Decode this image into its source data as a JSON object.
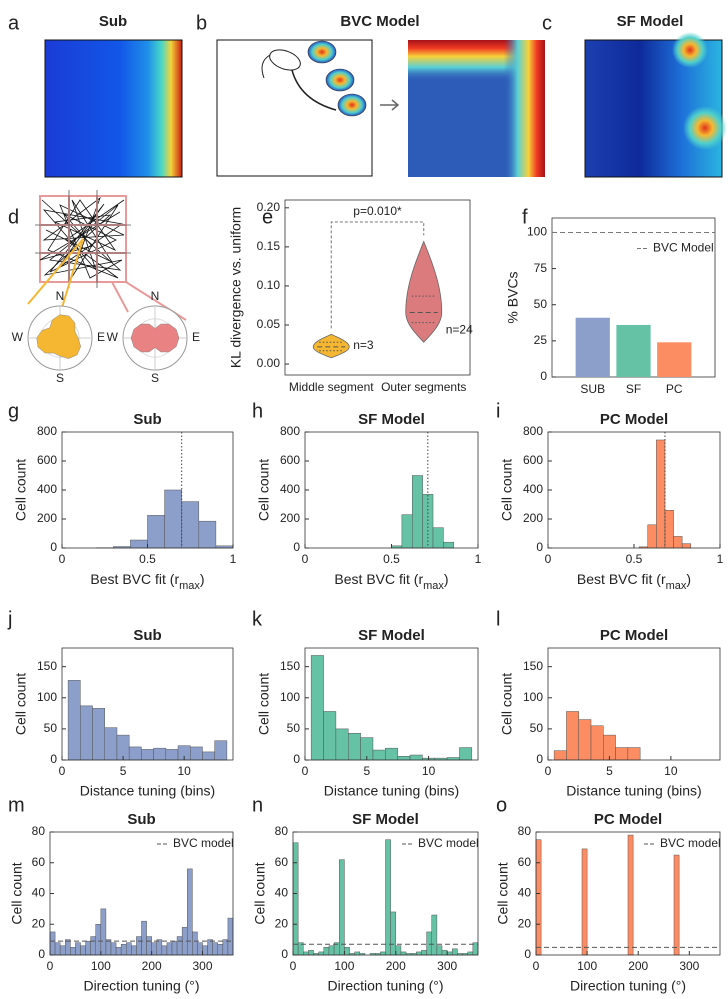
{
  "chart_data": [
    {
      "type": "image",
      "panel": "a",
      "title": "Sub"
    },
    {
      "type": "image",
      "panel": "b",
      "title": "BVC Model"
    },
    {
      "type": "image",
      "panel": "c",
      "title": "SF Model"
    },
    {
      "type": "rose",
      "panel": "d",
      "directions": [
        "N",
        "E",
        "S",
        "W"
      ],
      "colors": [
        "#f5b731",
        "#e98383"
      ]
    },
    {
      "type": "violin",
      "panel": "e",
      "ylabel": "KL divergence vs. uniform",
      "categories": [
        "Middle segment",
        "Outer segments"
      ],
      "violins": [
        {
          "min": 0.008,
          "q1": 0.017,
          "median": 0.022,
          "q3": 0.028,
          "max": 0.038
        },
        {
          "min": 0.028,
          "q1": 0.053,
          "median": 0.066,
          "q3": 0.087,
          "max": 0.157
        }
      ],
      "n_labels": [
        "n=3",
        "n=24"
      ],
      "colors": [
        "#f5b731",
        "#db7b7d"
      ],
      "annotation": "p=0.010*",
      "ylim": [
        -0.014,
        0.21
      ],
      "yticks": [
        {
          "value": 0,
          "label": "0.00"
        },
        {
          "value": 0.05,
          "label": "0.05"
        },
        {
          "value": 0.1,
          "label": "0.10"
        },
        {
          "value": 0.15,
          "label": "0.15"
        },
        {
          "value": 0.2,
          "label": "0.20"
        }
      ]
    },
    {
      "type": "bar",
      "panel": "f",
      "ylabel": "% BVCs",
      "categories": [
        "SUB",
        "SF",
        "PC"
      ],
      "values": [
        41,
        36,
        24
      ],
      "colors": [
        "#8c9fcb",
        "#66c2a5",
        "#fc8d62"
      ],
      "ylim": [
        0,
        110
      ],
      "yticks": [
        0,
        25,
        50,
        75,
        100
      ],
      "reference": {
        "name": "BVC Model",
        "value": 100
      }
    },
    {
      "type": "histogram",
      "panel": "g",
      "title": "Sub",
      "color": "#8c9fcb",
      "xlabel": [
        "Best BVC fit (r",
        "max",
        ")"
      ],
      "ylabel": "Cell count",
      "bins": [
        0,
        0.1,
        0.2,
        0.3,
        0.4,
        0.5,
        0.6,
        0.7,
        0.8,
        0.9,
        1
      ],
      "values": [
        0,
        0,
        2,
        10,
        55,
        225,
        400,
        320,
        185,
        15
      ],
      "vline": 0.7,
      "xlim": [
        0,
        1
      ],
      "xticks": [
        0,
        0.5,
        1
      ],
      "ylim": [
        0,
        800
      ],
      "yticks": [
        0,
        200,
        400,
        600,
        800
      ]
    },
    {
      "type": "histogram",
      "panel": "h",
      "title": "SF Model",
      "color": "#66c2a5",
      "xlabel": [
        "Best BVC fit (r",
        "max",
        ")"
      ],
      "ylabel": "Cell count",
      "bins": [
        0.5,
        0.56,
        0.62,
        0.68,
        0.74,
        0.8,
        0.86
      ],
      "values": [
        15,
        230,
        500,
        370,
        140,
        40
      ],
      "vline": 0.71,
      "xlim": [
        0,
        1
      ],
      "xticks": [
        0,
        0.5,
        1
      ],
      "ylim": [
        0,
        800
      ],
      "yticks": [
        0,
        200,
        400,
        600,
        800
      ]
    },
    {
      "type": "histogram",
      "panel": "i",
      "title": "PC Model",
      "color": "#fc8d62",
      "xlabel": [
        "Best BVC fit (r",
        "max",
        ")"
      ],
      "ylabel": "Cell count",
      "bins": [
        0.53,
        0.58,
        0.63,
        0.68,
        0.73,
        0.78,
        0.83
      ],
      "values": [
        8,
        160,
        745,
        260,
        80,
        30
      ],
      "vline": 0.68,
      "xlim": [
        0,
        1
      ],
      "xticks": [
        0,
        0.5,
        1
      ],
      "ylim": [
        0,
        800
      ],
      "yticks": [
        0,
        200,
        400,
        600,
        800
      ]
    },
    {
      "type": "histogram",
      "panel": "j",
      "title": "Sub",
      "color": "#8c9fcb",
      "xlabel": "Distance tuning (bins)",
      "ylabel": "Cell count",
      "bins": [
        0.5,
        1.5,
        2.5,
        3.5,
        4.5,
        5.5,
        6.5,
        7.5,
        8.5,
        9.5,
        10.5,
        11.5,
        12.5,
        13.5
      ],
      "values": [
        128,
        87,
        83,
        52,
        40,
        21,
        17,
        19,
        17,
        23,
        21,
        13,
        31
      ],
      "xlim": [
        0,
        14
      ],
      "xticks": [
        0,
        5,
        10
      ],
      "ylim": [
        0,
        180
      ],
      "yticks": [
        0,
        50,
        100,
        150
      ]
    },
    {
      "type": "histogram",
      "panel": "k",
      "title": "SF Model",
      "color": "#66c2a5",
      "xlabel": "Distance tuning (bins)",
      "ylabel": "Cell count",
      "bins": [
        0.5,
        1.5,
        2.5,
        3.5,
        4.5,
        5.5,
        6.5,
        7.5,
        8.5,
        9.5,
        10.5,
        11.5,
        12.5,
        13.5
      ],
      "values": [
        168,
        78,
        50,
        43,
        36,
        16,
        19,
        6,
        8,
        3,
        3,
        4,
        20
      ],
      "xlim": [
        0,
        14
      ],
      "xticks": [
        0,
        5,
        10
      ],
      "ylim": [
        0,
        180
      ],
      "yticks": [
        0,
        50,
        100,
        150
      ]
    },
    {
      "type": "histogram",
      "panel": "l",
      "title": "PC Model",
      "color": "#fc8d62",
      "xlabel": "Distance tuning (bins)",
      "ylabel": "Cell count",
      "bins": [
        0.5,
        1.5,
        2.5,
        3.5,
        4.5,
        5.5,
        6.5,
        7.5
      ],
      "values": [
        15,
        78,
        65,
        55,
        40,
        20,
        20
      ],
      "xlim": [
        0,
        14
      ],
      "xticks": [
        0,
        5,
        10
      ],
      "ylim": [
        0,
        180
      ],
      "yticks": [
        0,
        50,
        100,
        150
      ]
    },
    {
      "type": "histogram",
      "panel": "m",
      "title": "Sub",
      "color": "#8c9fcb",
      "xlabel": "Direction tuning (°)",
      "ylabel": "Cell count",
      "bins": [
        0,
        10,
        20,
        30,
        40,
        50,
        60,
        70,
        80,
        90,
        100,
        110,
        120,
        130,
        140,
        150,
        160,
        170,
        180,
        190,
        200,
        210,
        220,
        230,
        240,
        250,
        260,
        270,
        280,
        290,
        300,
        310,
        320,
        330,
        340,
        350,
        360
      ],
      "values": [
        15,
        8,
        6,
        10,
        5,
        8,
        6,
        9,
        12,
        20,
        30,
        10,
        8,
        5,
        7,
        8,
        6,
        12,
        22,
        12,
        8,
        10,
        6,
        8,
        9,
        12,
        18,
        56,
        15,
        8,
        6,
        10,
        8,
        7,
        10,
        24
      ],
      "reference": {
        "name": "BVC model",
        "value": 9
      },
      "xlim": [
        0,
        360
      ],
      "xticks": [
        0,
        100,
        200,
        300
      ],
      "ylim": [
        0,
        80
      ],
      "yticks": [
        0,
        20,
        40,
        60,
        80
      ]
    },
    {
      "type": "histogram",
      "panel": "n",
      "title": "SF Model",
      "color": "#66c2a5",
      "xlabel": "Direction tuning (°)",
      "ylabel": "Cell count",
      "bins": [
        0,
        10,
        20,
        30,
        40,
        50,
        60,
        70,
        80,
        90,
        100,
        110,
        120,
        130,
        140,
        150,
        160,
        170,
        180,
        190,
        200,
        210,
        220,
        230,
        240,
        250,
        260,
        270,
        280,
        290,
        300,
        310,
        320,
        330,
        340,
        350,
        360
      ],
      "values": [
        73,
        8,
        2,
        3,
        1,
        2,
        5,
        6,
        8,
        62,
        5,
        1,
        2,
        1,
        0,
        1,
        1,
        2,
        75,
        28,
        6,
        2,
        1,
        1,
        2,
        3,
        15,
        26,
        6,
        3,
        2,
        4,
        1,
        1,
        2,
        8
      ],
      "reference": {
        "name": "BVC model",
        "value": 7
      },
      "xlim": [
        0,
        360
      ],
      "xticks": [
        0,
        100,
        200,
        300
      ],
      "ylim": [
        0,
        80
      ],
      "yticks": [
        0,
        20,
        40,
        60,
        80
      ]
    },
    {
      "type": "histogram",
      "panel": "o",
      "title": "PC Model",
      "color": "#fc8d62",
      "xlabel": "Direction tuning (°)",
      "ylabel": "Cell count",
      "bins": [
        0,
        10,
        20,
        30,
        40,
        50,
        60,
        70,
        80,
        90,
        100,
        110,
        120,
        130,
        140,
        150,
        160,
        170,
        180,
        190,
        200,
        210,
        220,
        230,
        240,
        250,
        260,
        270,
        280,
        290,
        300,
        310,
        320,
        330,
        340,
        350,
        360
      ],
      "values": [
        75,
        0,
        0,
        0,
        0,
        0,
        0,
        0,
        0,
        69,
        0,
        0,
        0,
        0,
        0,
        0,
        0,
        0,
        78,
        0,
        0,
        0,
        0,
        0,
        0,
        0,
        0,
        65,
        0,
        0,
        0,
        0,
        0,
        0,
        0,
        0
      ],
      "reference": {
        "name": "BVC model",
        "value": 5
      },
      "xlim": [
        0,
        360
      ],
      "xticks": [
        0,
        100,
        200,
        300
      ],
      "ylim": [
        0,
        80
      ],
      "yticks": [
        0,
        20,
        40,
        60,
        80
      ]
    }
  ]
}
